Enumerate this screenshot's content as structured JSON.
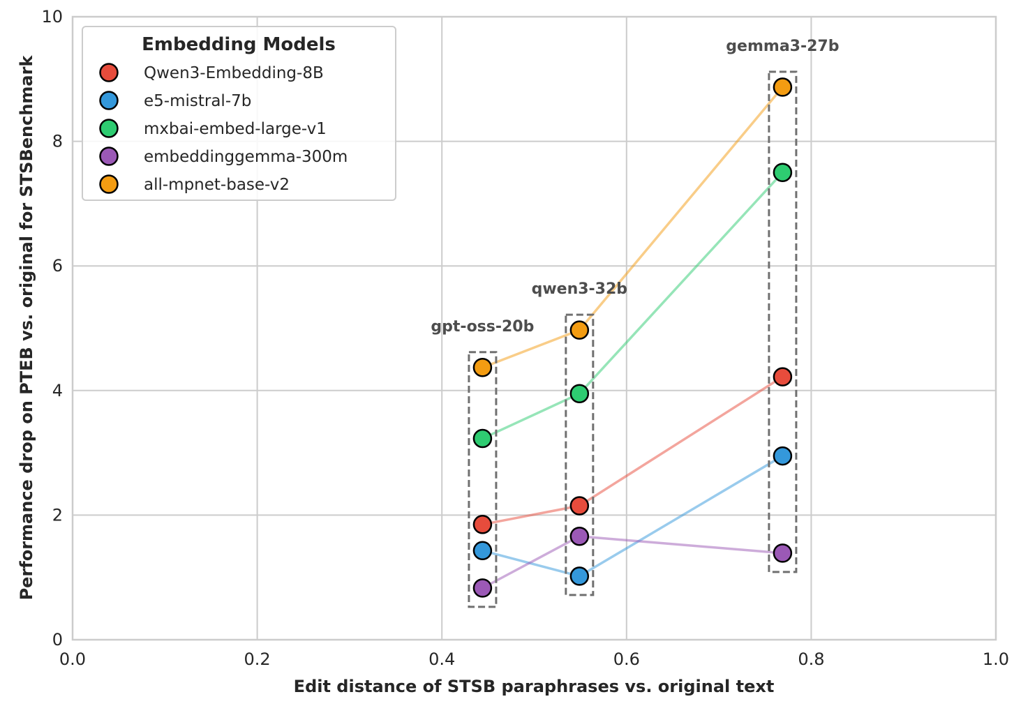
{
  "chart_data": {
    "type": "scatter",
    "xlabel": "Edit distance of STSB paraphrases vs. original text",
    "ylabel": "Performance drop on PTEB vs. original for STSBenchmark",
    "xlim": [
      0.0,
      1.0
    ],
    "ylim": [
      0,
      10
    ],
    "x_ticks": [
      0.0,
      0.2,
      0.4,
      0.6,
      0.8,
      1.0
    ],
    "x_tick_labels": [
      "0.0",
      "0.2",
      "0.4",
      "0.6",
      "0.8",
      "1.0"
    ],
    "y_ticks": [
      0,
      2,
      4,
      6,
      8,
      10
    ],
    "y_tick_labels": [
      "0",
      "2",
      "4",
      "6",
      "8",
      "10"
    ],
    "grid": true,
    "legend": {
      "title": "Embedding Models",
      "placement": "top-left"
    },
    "groups": [
      {
        "label": "gpt-oss-20b",
        "x": 0.444
      },
      {
        "label": "qwen3-32b",
        "x": 0.549
      },
      {
        "label": "gemma3-27b",
        "x": 0.769
      }
    ],
    "series": [
      {
        "name": "Qwen3-Embedding-8B",
        "color": "#e74c3c",
        "x": [
          0.444,
          0.549,
          0.769
        ],
        "y": [
          1.85,
          2.15,
          4.22
        ]
      },
      {
        "name": "e5-mistral-7b",
        "color": "#3498db",
        "x": [
          0.444,
          0.549,
          0.769
        ],
        "y": [
          1.43,
          1.02,
          2.95
        ]
      },
      {
        "name": "mxbai-embed-large-v1",
        "color": "#2ecc71",
        "x": [
          0.444,
          0.549,
          0.769
        ],
        "y": [
          3.23,
          3.95,
          7.5
        ]
      },
      {
        "name": "embeddinggemma-300m",
        "color": "#9b59b6",
        "x": [
          0.444,
          0.549,
          0.769
        ],
        "y": [
          0.83,
          1.66,
          1.39
        ]
      },
      {
        "name": "all-mpnet-base-v2",
        "color": "#f39c12",
        "x": [
          0.444,
          0.549,
          0.769
        ],
        "y": [
          4.37,
          4.97,
          8.87
        ]
      }
    ]
  }
}
